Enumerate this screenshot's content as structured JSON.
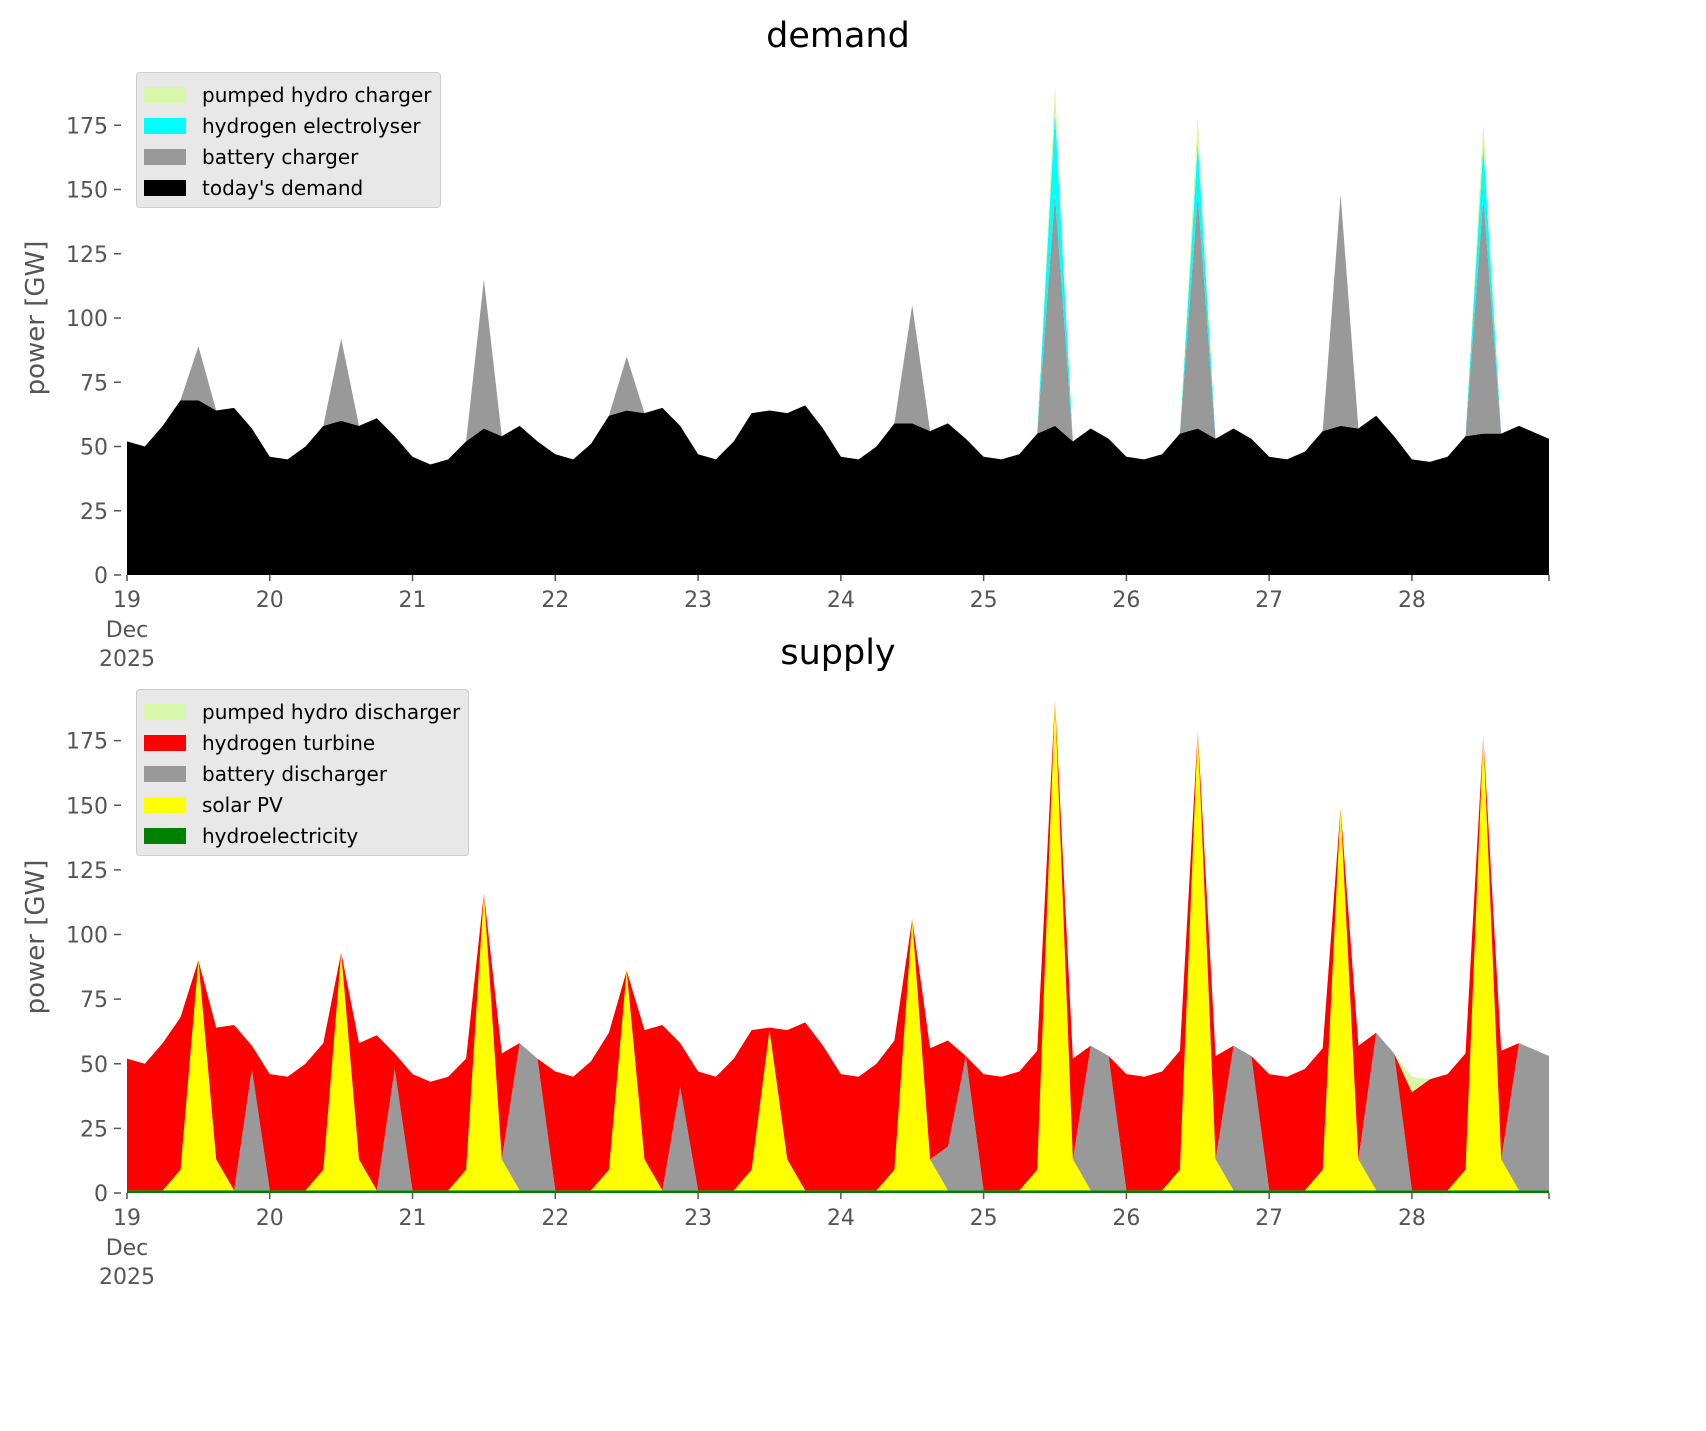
{
  "chart_data": [
    {
      "type": "area",
      "stacked": true,
      "title": "demand",
      "ylabel": "power [GW]",
      "xlabel": "",
      "x_start_day": 19,
      "x_step_days": 0.125,
      "xlim": [
        19,
        28.96
      ],
      "ylim": [
        0,
        200
      ],
      "yticks": [
        0,
        25,
        50,
        75,
        100,
        125,
        150,
        175
      ],
      "xticks": [
        19,
        20,
        21,
        22,
        23,
        24,
        25,
        26,
        27,
        28
      ],
      "xtick_labels": [
        "19",
        "20",
        "21",
        "22",
        "23",
        "24",
        "25",
        "26",
        "27",
        "28"
      ],
      "xtick_sublabels": [
        "Dec",
        "2025"
      ],
      "legend_position": "top-left",
      "series": [
        {
          "name": "today's demand",
          "color": "#000000",
          "values": [
            52,
            50,
            58,
            68,
            68,
            64,
            65,
            57,
            46,
            45,
            50,
            58,
            60,
            58,
            61,
            54,
            46,
            43,
            45,
            52,
            57,
            54,
            58,
            52,
            47,
            45,
            51,
            62,
            64,
            63,
            65,
            58,
            47,
            45,
            52,
            63,
            64,
            63,
            66,
            57,
            46,
            45,
            50,
            59,
            59,
            56,
            59,
            53,
            46,
            45,
            47,
            55,
            58,
            52,
            57,
            53,
            46,
            45,
            47,
            55,
            57,
            53,
            57,
            53,
            46,
            45,
            48,
            56,
            58,
            57,
            62,
            54,
            45,
            44,
            46,
            54,
            55,
            55,
            58,
            55,
            52
          ]
        },
        {
          "name": "battery charger",
          "color": "#999999",
          "values": [
            0,
            0,
            0,
            0,
            21,
            0,
            0,
            0,
            0,
            0,
            0,
            0,
            32,
            0,
            0,
            0,
            0,
            0,
            0,
            0,
            58,
            0,
            0,
            0,
            0,
            0,
            0,
            0,
            21,
            0,
            0,
            0,
            0,
            0,
            0,
            0,
            0,
            0,
            0,
            0,
            0,
            0,
            0,
            0,
            46,
            0,
            0,
            0,
            0,
            0,
            0,
            0,
            90,
            0,
            0,
            0,
            0,
            0,
            0,
            0,
            91,
            0,
            0,
            0,
            0,
            0,
            0,
            0,
            90,
            0,
            0,
            0,
            0,
            0,
            0,
            0,
            92,
            0,
            0,
            0,
            0
          ]
        },
        {
          "name": "hydrogen electrolyser",
          "color": "#00ffff",
          "values": [
            0,
            0,
            0,
            0,
            0,
            0,
            0,
            0,
            0,
            0,
            0,
            0,
            0,
            0,
            0,
            0,
            0,
            0,
            0,
            0,
            0,
            0,
            0,
            0,
            0,
            0,
            0,
            0,
            0,
            0,
            0,
            0,
            0,
            0,
            0,
            0,
            0,
            0,
            0,
            0,
            0,
            0,
            0,
            0,
            0,
            0,
            0,
            0,
            0,
            0,
            0,
            0,
            32,
            0,
            0,
            0,
            0,
            0,
            0,
            0,
            20,
            0,
            0,
            0,
            0,
            0,
            0,
            0,
            0,
            0,
            0,
            0,
            0,
            0,
            0,
            0,
            20,
            0,
            0,
            0,
            0
          ]
        },
        {
          "name": "pumped hydro charger",
          "color": "#d9f7a8",
          "values": [
            0,
            0,
            0,
            0,
            0,
            0,
            0,
            0,
            0,
            0,
            0,
            0,
            0,
            0,
            0,
            0,
            0,
            0,
            0,
            0,
            0,
            0,
            0,
            0,
            0,
            0,
            0,
            0,
            0,
            0,
            0,
            0,
            0,
            0,
            0,
            0,
            0,
            0,
            0,
            0,
            0,
            0,
            0,
            0,
            0,
            0,
            0,
            0,
            0,
            0,
            0,
            0,
            10,
            0,
            0,
            0,
            0,
            0,
            0,
            0,
            10,
            0,
            0,
            0,
            0,
            0,
            0,
            0,
            0,
            0,
            0,
            0,
            0,
            0,
            0,
            0,
            9,
            0,
            0,
            0,
            0
          ]
        }
      ]
    },
    {
      "type": "area",
      "stacked": true,
      "title": "supply",
      "ylabel": "power [GW]",
      "xlabel": "",
      "x_start_day": 19,
      "x_step_days": 0.125,
      "xlim": [
        19,
        28.96
      ],
      "ylim": [
        0,
        200
      ],
      "yticks": [
        0,
        25,
        50,
        75,
        100,
        125,
        150,
        175
      ],
      "xticks": [
        19,
        20,
        21,
        22,
        23,
        24,
        25,
        26,
        27,
        28
      ],
      "xtick_labels": [
        "19",
        "20",
        "21",
        "22",
        "23",
        "24",
        "25",
        "26",
        "27",
        "28"
      ],
      "xtick_sublabels": [
        "Dec",
        "2025"
      ],
      "legend_position": "top-left",
      "series": [
        {
          "name": "hydroelectricity",
          "color": "#008000",
          "values": [
            1,
            1,
            1,
            1,
            1,
            1,
            1,
            1,
            1,
            1,
            1,
            1,
            1,
            1,
            1,
            1,
            1,
            1,
            1,
            1,
            1,
            1,
            1,
            1,
            1,
            1,
            1,
            1,
            1,
            1,
            1,
            1,
            1,
            1,
            1,
            1,
            1,
            1,
            1,
            1,
            1,
            1,
            1,
            1,
            1,
            1,
            1,
            1,
            1,
            1,
            1,
            1,
            1,
            1,
            1,
            1,
            1,
            1,
            1,
            1,
            1,
            1,
            1,
            1,
            1,
            1,
            1,
            1,
            1,
            1,
            1,
            1,
            1,
            1,
            1,
            1,
            1,
            1,
            1,
            1,
            1
          ]
        },
        {
          "name": "solar PV",
          "color": "#ffff00",
          "values": [
            0,
            0,
            0,
            8,
            89,
            12,
            0,
            0,
            0,
            0,
            0,
            8,
            92,
            12,
            0,
            0,
            0,
            0,
            0,
            8,
            115,
            12,
            0,
            0,
            0,
            0,
            0,
            8,
            85,
            12,
            0,
            0,
            0,
            0,
            0,
            8,
            62,
            12,
            0,
            0,
            0,
            0,
            0,
            8,
            105,
            12,
            0,
            0,
            0,
            0,
            0,
            8,
            190,
            12,
            0,
            0,
            0,
            0,
            0,
            8,
            178,
            12,
            0,
            0,
            0,
            0,
            0,
            8,
            148,
            12,
            0,
            0,
            0,
            0,
            0,
            8,
            176,
            12,
            0,
            0,
            0
          ]
        },
        {
          "name": "battery discharger",
          "color": "#999999",
          "values": [
            0,
            0,
            0,
            0,
            0,
            0,
            0,
            47,
            0,
            0,
            0,
            0,
            0,
            0,
            0,
            47,
            0,
            0,
            0,
            0,
            0,
            0,
            57,
            51,
            0,
            0,
            0,
            0,
            0,
            0,
            0,
            40,
            0,
            0,
            0,
            0,
            0,
            0,
            0,
            0,
            0,
            0,
            0,
            0,
            0,
            0,
            17,
            52,
            0,
            0,
            0,
            0,
            0,
            0,
            56,
            52,
            0,
            0,
            0,
            0,
            0,
            0,
            56,
            52,
            0,
            0,
            0,
            0,
            0,
            0,
            61,
            53,
            0,
            0,
            0,
            0,
            0,
            0,
            57,
            54,
            51
          ]
        },
        {
          "name": "hydrogen turbine",
          "color": "#ff0000",
          "values": [
            51,
            49,
            57,
            59,
            0,
            51,
            64,
            9,
            45,
            44,
            49,
            49,
            0,
            45,
            60,
            6,
            45,
            42,
            44,
            43,
            0,
            41,
            0,
            0,
            46,
            44,
            50,
            53,
            0,
            50,
            64,
            17,
            46,
            44,
            51,
            54,
            1,
            50,
            65,
            56,
            45,
            44,
            49,
            50,
            0,
            43,
            41,
            0,
            45,
            44,
            46,
            46,
            0,
            39,
            0,
            0,
            45,
            44,
            46,
            46,
            0,
            40,
            0,
            0,
            45,
            44,
            47,
            47,
            0,
            44,
            0,
            0,
            38,
            43,
            45,
            45,
            0,
            42,
            0,
            0,
            0
          ]
        },
        {
          "name": "pumped hydro discharger",
          "color": "#d9f7a8",
          "values": [
            0,
            0,
            0,
            0,
            0,
            0,
            0,
            0,
            0,
            0,
            0,
            0,
            0,
            0,
            0,
            0,
            0,
            0,
            0,
            0,
            0,
            0,
            0,
            0,
            0,
            0,
            0,
            0,
            0,
            0,
            0,
            0,
            0,
            0,
            0,
            0,
            0,
            0,
            0,
            0,
            0,
            0,
            0,
            0,
            0,
            0,
            0,
            0,
            0,
            0,
            0,
            0,
            0,
            0,
            0,
            0,
            0,
            0,
            0,
            0,
            0,
            0,
            0,
            0,
            0,
            0,
            0,
            0,
            0,
            0,
            0,
            0,
            6,
            0,
            0,
            0,
            0,
            0,
            0,
            0,
            0
          ]
        }
      ]
    }
  ],
  "legends": [
    [
      "pumped hydro charger",
      "hydrogen electrolyser",
      "battery charger",
      "today's demand"
    ],
    [
      "pumped hydro discharger",
      "hydrogen turbine",
      "battery discharger",
      "solar PV",
      "hydroelectricity"
    ]
  ]
}
